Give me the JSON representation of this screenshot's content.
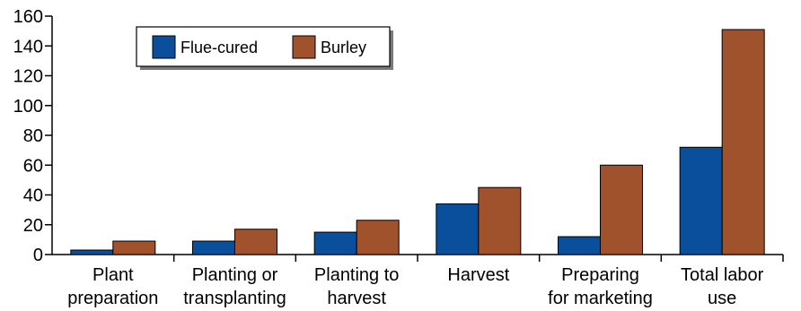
{
  "chart_data": {
    "type": "bar",
    "categories": [
      [
        "Plant",
        "preparation"
      ],
      [
        "Planting or",
        "transplanting"
      ],
      [
        "Planting to",
        "harvest"
      ],
      [
        "Harvest"
      ],
      [
        "Preparing",
        "for marketing"
      ],
      [
        "Total labor",
        "use"
      ]
    ],
    "series": [
      {
        "name": "Flue-cured",
        "color": "#0a4f9c",
        "values": [
          3,
          9,
          15,
          34,
          12,
          72
        ]
      },
      {
        "name": "Burley",
        "color": "#a0522d",
        "values": [
          9,
          17,
          23,
          45,
          60,
          151
        ]
      }
    ],
    "yticks": [
      0,
      20,
      40,
      60,
      80,
      100,
      120,
      140,
      160
    ],
    "ylim": [
      0,
      160
    ],
    "title": "",
    "xlabel": "",
    "ylabel": "",
    "legend": "top-left",
    "grid": false
  }
}
